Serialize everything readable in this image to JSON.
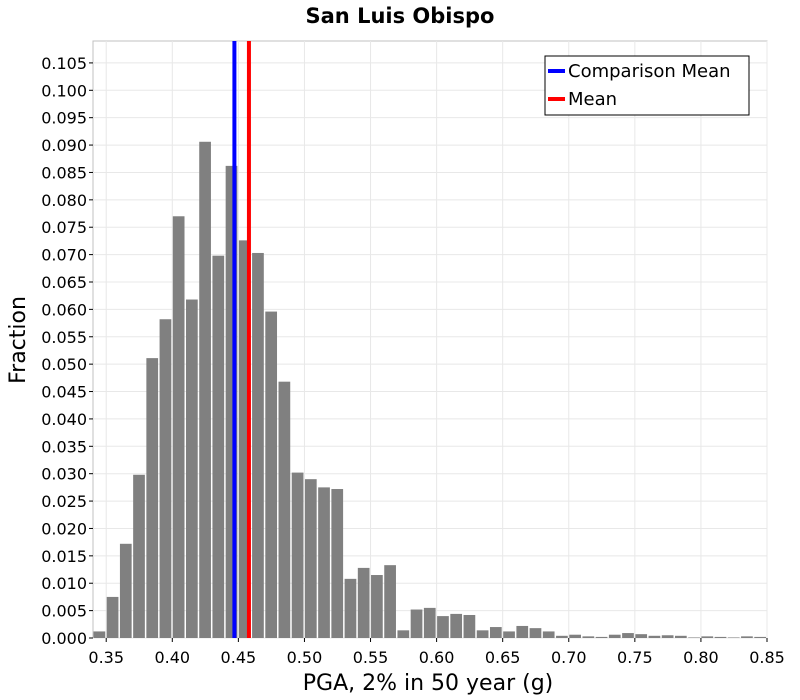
{
  "chart_data": {
    "type": "bar",
    "title": "San Luis Obispo",
    "xlabel": "PGA, 2% in 50 year (g)",
    "ylabel": "Fraction",
    "xlim": [
      0.34,
      0.85
    ],
    "ylim": [
      0,
      0.109
    ],
    "bin_width": 0.01,
    "grid": true,
    "legend_position": "top-right",
    "x_ticks": [
      "0.35",
      "0.40",
      "0.45",
      "0.50",
      "0.55",
      "0.60",
      "0.65",
      "0.70",
      "0.75",
      "0.80",
      "0.85"
    ],
    "y_ticks": [
      "0.000",
      "0.005",
      "0.010",
      "0.015",
      "0.020",
      "0.025",
      "0.030",
      "0.035",
      "0.040",
      "0.045",
      "0.050",
      "0.055",
      "0.060",
      "0.065",
      "0.070",
      "0.075",
      "0.080",
      "0.085",
      "0.090",
      "0.095",
      "0.100",
      "0.105"
    ],
    "bins": [
      0.34,
      0.35,
      0.36,
      0.37,
      0.38,
      0.39,
      0.4,
      0.41,
      0.42,
      0.43,
      0.44,
      0.45,
      0.46,
      0.47,
      0.48,
      0.49,
      0.5,
      0.51,
      0.52,
      0.53,
      0.54,
      0.55,
      0.56,
      0.57,
      0.58,
      0.59,
      0.6,
      0.61,
      0.62,
      0.63,
      0.64,
      0.65,
      0.66,
      0.67,
      0.68,
      0.69,
      0.7,
      0.71,
      0.72,
      0.73,
      0.74,
      0.75,
      0.76,
      0.77,
      0.78,
      0.79,
      0.8,
      0.81,
      0.82,
      0.83,
      0.84
    ],
    "values": [
      0.0012,
      0.0075,
      0.0172,
      0.0298,
      0.0511,
      0.0582,
      0.077,
      0.0618,
      0.0906,
      0.0698,
      0.0862,
      0.0726,
      0.0703,
      0.0596,
      0.0468,
      0.0302,
      0.029,
      0.0275,
      0.0272,
      0.0108,
      0.0128,
      0.0115,
      0.0133,
      0.0014,
      0.0052,
      0.0055,
      0.004,
      0.0044,
      0.0042,
      0.0014,
      0.002,
      0.0012,
      0.0022,
      0.0018,
      0.0012,
      0.0004,
      0.0006,
      0.0003,
      0.0002,
      0.0006,
      0.0009,
      0.0007,
      0.0004,
      0.0005,
      0.0004,
      0.0001,
      0.0003,
      0.0002,
      0.0001,
      0.0003,
      0.0002
    ],
    "bar_color": "#808080",
    "lines": [
      {
        "name": "Comparison Mean",
        "x": 0.447,
        "color": "#0000ff"
      },
      {
        "name": "Mean",
        "x": 0.458,
        "color": "#ff0000"
      }
    ]
  }
}
